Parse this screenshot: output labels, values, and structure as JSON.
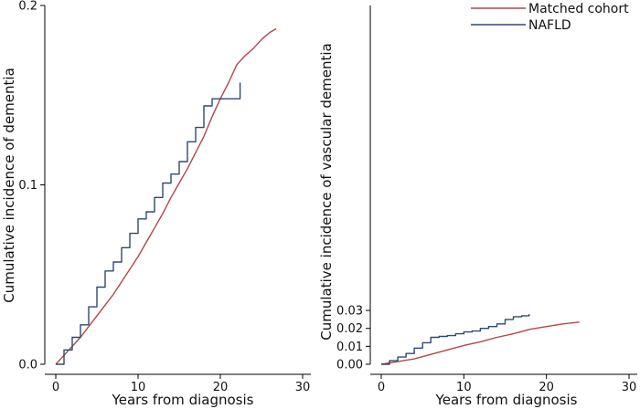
{
  "chart_data": [
    {
      "type": "line",
      "panel": "left",
      "xlabel": "Years from diagnosis",
      "ylabel": "Cumulative incidence of dementia",
      "xlim": [
        0,
        30
      ],
      "ylim": [
        0,
        0.2
      ],
      "xticks": [
        0,
        10,
        20,
        30
      ],
      "yticks": [
        0.0,
        0.1,
        0.2
      ],
      "xtick_labels": [
        "0",
        "10",
        "20",
        "30"
      ],
      "ytick_labels": [
        "0.0",
        "0.1",
        "0.2"
      ],
      "series": [
        {
          "name": "Matched cohort",
          "color": "#b2474a",
          "x": [
            0,
            1,
            2,
            3,
            4,
            5,
            6,
            7,
            8,
            9,
            10,
            11,
            12,
            13,
            14,
            15,
            16,
            17,
            18,
            19,
            20,
            21,
            22,
            23,
            24,
            25,
            26,
            26.8
          ],
          "y": [
            0,
            0.005,
            0.01,
            0.015,
            0.021,
            0.027,
            0.033,
            0.039,
            0.046,
            0.053,
            0.06,
            0.068,
            0.076,
            0.084,
            0.093,
            0.101,
            0.109,
            0.118,
            0.127,
            0.138,
            0.148,
            0.157,
            0.167,
            0.172,
            0.176,
            0.181,
            0.185,
            0.187
          ]
        },
        {
          "name": "NAFLD",
          "color": "#2e4a6f",
          "x": [
            0,
            1,
            2,
            3,
            4,
            5,
            6,
            7,
            8,
            9,
            10,
            11,
            12,
            13,
            14,
            15,
            16,
            17,
            18,
            19,
            20,
            21,
            22,
            22.4,
            22.4
          ],
          "y": [
            0,
            0.008,
            0.015,
            0.022,
            0.032,
            0.043,
            0.052,
            0.057,
            0.065,
            0.073,
            0.081,
            0.085,
            0.093,
            0.101,
            0.106,
            0.113,
            0.124,
            0.132,
            0.144,
            0.148,
            0.148,
            0.148,
            0.148,
            0.148,
            0.157
          ]
        }
      ]
    },
    {
      "type": "line",
      "panel": "right",
      "xlabel": "Years from diagnosis",
      "ylabel": "Cumulative incidence of vascular dementia",
      "xlim": [
        0,
        30
      ],
      "ylim": [
        0,
        0.2
      ],
      "xticks": [
        0,
        10,
        20,
        30
      ],
      "yticks": [
        0.0,
        0.01,
        0.02,
        0.03
      ],
      "xtick_labels": [
        "0",
        "10",
        "20",
        "30"
      ],
      "ytick_labels": [
        "0.00",
        "0.01",
        "0.02",
        "0.03"
      ],
      "legend": "top-right",
      "legend_entries": [
        "Matched cohort",
        "NAFLD"
      ],
      "series": [
        {
          "name": "Matched cohort",
          "color": "#b2474a",
          "x": [
            0,
            2,
            4,
            6,
            8,
            10,
            12,
            14,
            16,
            18,
            20,
            22,
            24
          ],
          "y": [
            0,
            0.0015,
            0.003,
            0.0055,
            0.008,
            0.0105,
            0.0125,
            0.015,
            0.017,
            0.0195,
            0.021,
            0.0225,
            0.0235
          ]
        },
        {
          "name": "NAFLD",
          "color": "#2e4a6f",
          "x": [
            0,
            1,
            2,
            3,
            4,
            5,
            6,
            7,
            8,
            9,
            10,
            11,
            12,
            13,
            14,
            15,
            16,
            17,
            17.9
          ],
          "y": [
            0,
            0.002,
            0.004,
            0.006,
            0.009,
            0.012,
            0.015,
            0.0155,
            0.016,
            0.017,
            0.018,
            0.0185,
            0.02,
            0.021,
            0.0225,
            0.025,
            0.0265,
            0.027,
            0.028
          ]
        }
      ]
    }
  ]
}
